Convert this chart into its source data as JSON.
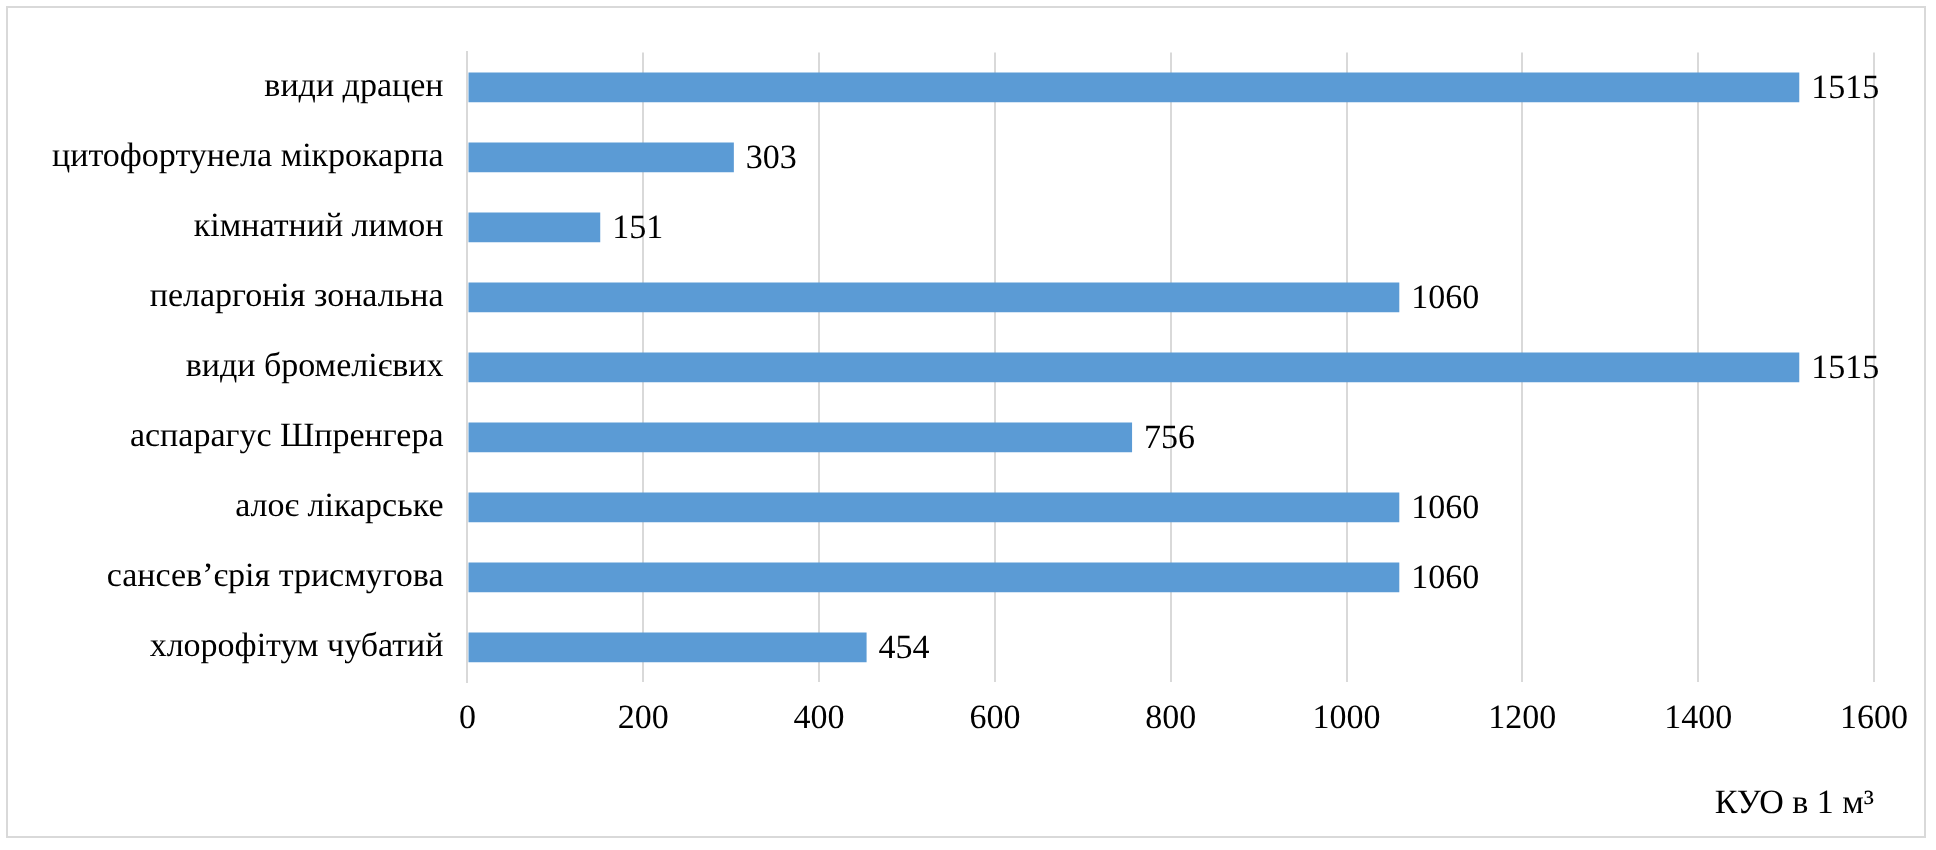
{
  "chart_data": {
    "type": "bar",
    "orientation": "horizontal",
    "xlabel": "КУО в 1 м³",
    "categories": [
      "види драцен",
      "цитофортунела мікрокарпа",
      "кімнатний лимон",
      "пеларгонія зональна",
      "види бромелієвих",
      "аспарагус Шпренгера",
      "алоє лікарське",
      "сансев’єрія трисмугова",
      "хлорофітум чубатий"
    ],
    "values": [
      1515,
      303,
      151,
      1060,
      1515,
      756,
      1060,
      1060,
      454
    ],
    "color": "#5b9bd5",
    "xlim": [
      0,
      1600
    ],
    "xticks": [
      0,
      200,
      400,
      600,
      800,
      1000,
      1200,
      1400,
      1600
    ],
    "grid": "x",
    "data_labels": true,
    "legend": false
  }
}
